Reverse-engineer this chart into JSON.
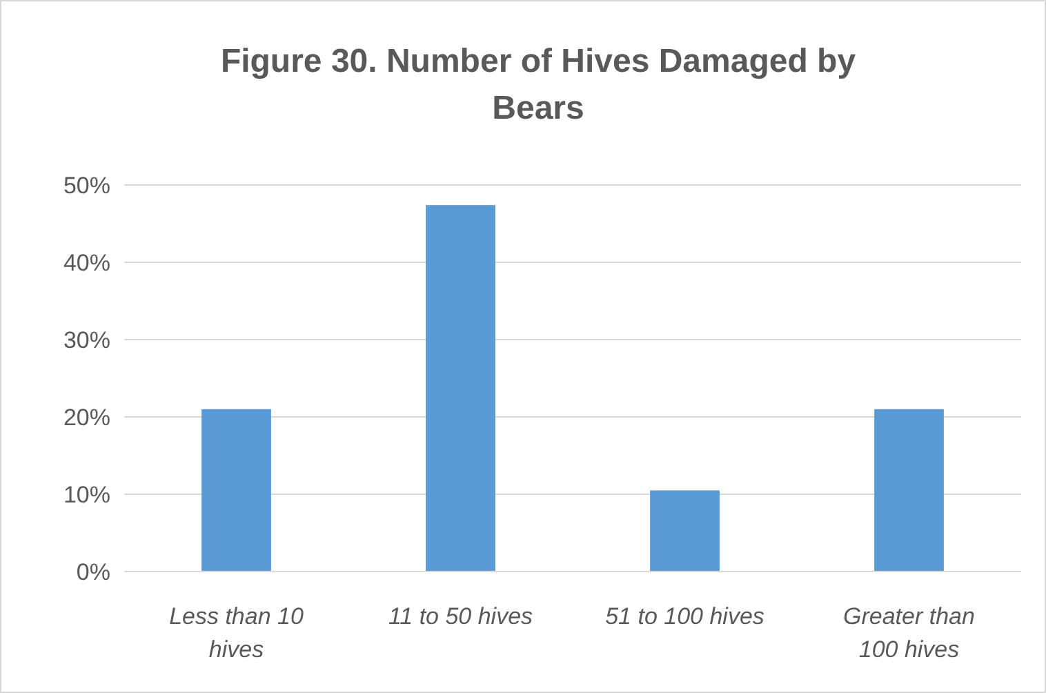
{
  "chart_data": {
    "type": "bar",
    "title": "Figure 30. Number of Hives Damaged by Bears",
    "categories": [
      "Less than 10 hives",
      "11 to 50 hives",
      "51 to 100 hives",
      "Greater than 100 hives"
    ],
    "values": [
      21,
      47.4,
      10.5,
      21
    ],
    "color": "#5b9bd5",
    "ylim": [
      0,
      50
    ],
    "yticks": [
      {
        "value": 0,
        "label": "0%"
      },
      {
        "value": 10,
        "label": "10%"
      },
      {
        "value": 20,
        "label": "20%"
      },
      {
        "value": 30,
        "label": "30%"
      },
      {
        "value": 40,
        "label": "40%"
      },
      {
        "value": 50,
        "label": "50%"
      }
    ],
    "grid": "y"
  }
}
